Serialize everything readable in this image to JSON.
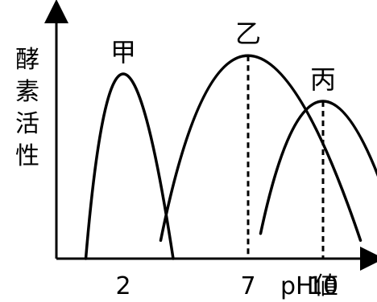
{
  "chart_data": {
    "type": "line",
    "title": "",
    "xlabel": "pH値",
    "ylabel": "酵素活性",
    "x_ticks": [
      "2",
      "7",
      "10"
    ],
    "xlim": [
      0,
      13
    ],
    "ylim": [
      0,
      1
    ],
    "grid": false,
    "legend": "none",
    "series": [
      {
        "name": "甲",
        "peak_x": 2,
        "points": [
          [
            0.5,
            0.0
          ],
          [
            2,
            0.81
          ],
          [
            4,
            0.0
          ]
        ]
      },
      {
        "name": "乙",
        "peak_x": 7,
        "points": [
          [
            3.5,
            0.08
          ],
          [
            7,
            0.89
          ],
          [
            11.5,
            0.08
          ]
        ]
      },
      {
        "name": "丙",
        "peak_x": 10,
        "points": [
          [
            7.5,
            0.11
          ],
          [
            10,
            0.69
          ],
          [
            13,
            0.11
          ]
        ]
      }
    ],
    "guides": [
      {
        "x": 7,
        "to_series": "乙"
      },
      {
        "x": 10,
        "to_series": "丙"
      }
    ]
  }
}
